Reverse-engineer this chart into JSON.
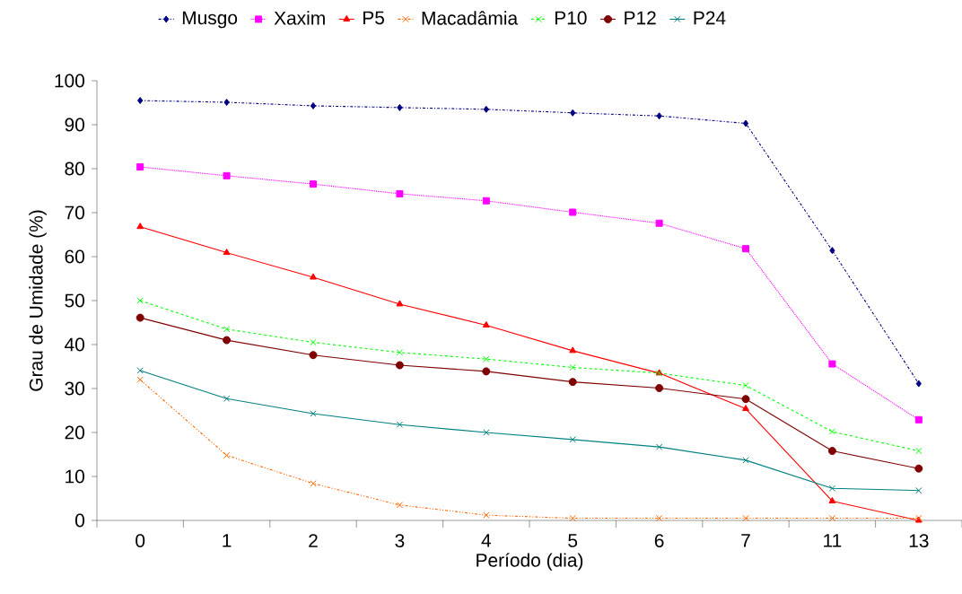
{
  "chart_data": {
    "type": "line",
    "xlabel": "Período (dia)",
    "ylabel": "Grau de Umidade (%)",
    "categories": [
      "0",
      "1",
      "2",
      "3",
      "4",
      "5",
      "6",
      "7",
      "11",
      "13"
    ],
    "ylim": [
      0,
      100
    ],
    "yticks": [
      0,
      10,
      20,
      30,
      40,
      50,
      60,
      70,
      80,
      90,
      100
    ],
    "grid": false,
    "legend": "top",
    "series": [
      {
        "name": "Musgo",
        "color": "#000080",
        "marker": "diamond",
        "line_style": "dashdot",
        "values": [
          95.5,
          95.1,
          94.3,
          93.9,
          93.5,
          92.7,
          92.0,
          90.3,
          61.4,
          31.1
        ]
      },
      {
        "name": "Xaxim",
        "color": "#ff00ff",
        "marker": "square",
        "line_style": "dotted",
        "values": [
          80.4,
          78.4,
          76.5,
          74.3,
          72.7,
          70.1,
          67.6,
          61.8,
          35.6,
          22.9
        ]
      },
      {
        "name": "P5",
        "color": "#ff0000",
        "marker": "triangle",
        "line_style": "solid",
        "values": [
          66.8,
          60.9,
          55.3,
          49.2,
          44.4,
          38.6,
          33.5,
          25.4,
          4.4,
          0
        ]
      },
      {
        "name": "Macadâmia",
        "color": "#ff6600",
        "marker": "cross",
        "line_style": "dashdotdot",
        "values": [
          32.0,
          14.8,
          8.4,
          3.5,
          1.2,
          0.5,
          0.5,
          0.5,
          0.5,
          0.5
        ]
      },
      {
        "name": "P10",
        "color": "#00ff00",
        "marker": "cross",
        "line_style": "dashed",
        "values": [
          50.0,
          43.5,
          40.5,
          38.2,
          36.7,
          34.8,
          33.5,
          30.7,
          20.2,
          15.8
        ]
      },
      {
        "name": "P12",
        "color": "#800000",
        "marker": "circle",
        "line_style": "solid",
        "values": [
          46.1,
          41.0,
          37.6,
          35.3,
          33.9,
          31.5,
          30.1,
          27.6,
          15.8,
          11.8
        ]
      },
      {
        "name": "P24",
        "color": "#008080",
        "marker": "cross",
        "line_style": "solid",
        "values": [
          34.1,
          27.7,
          24.3,
          21.8,
          20.0,
          18.4,
          16.7,
          13.7,
          7.3,
          6.8
        ]
      }
    ]
  }
}
